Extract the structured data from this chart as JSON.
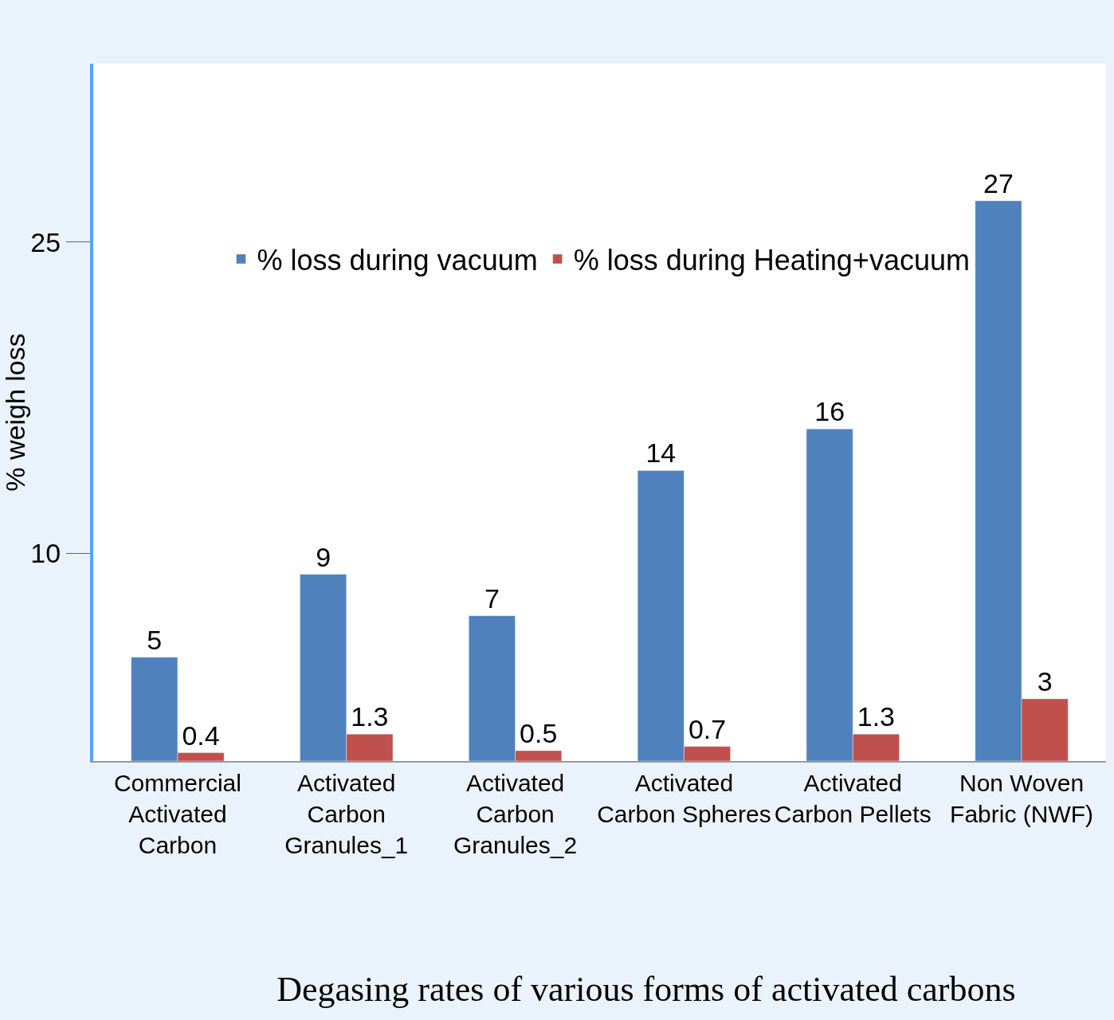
{
  "chart_data": {
    "type": "bar",
    "title": "Degasing rates of various forms of activated carbons",
    "ylabel": "% weigh loss",
    "categories": [
      "Commercial Activated Carbon",
      "Activated Carbon Granules_1",
      "Activated Carbon Granules_2",
      "Activated Carbon Spheres",
      "Activated Carbon Pellets",
      "Non Woven Fabric (NWF)"
    ],
    "series": [
      {
        "name": "% loss during vacuum",
        "color": "#4f81bd",
        "values": [
          5,
          9,
          7,
          14,
          16,
          27
        ]
      },
      {
        "name": "% loss during Heating+vacuum",
        "color": "#c0504d",
        "values": [
          0.4,
          1.3,
          0.5,
          0.7,
          1.3,
          3
        ]
      }
    ],
    "ylim": [
      0,
      33.6
    ],
    "yticks": [
      10,
      25
    ],
    "data_labels": true,
    "legend": "top"
  }
}
